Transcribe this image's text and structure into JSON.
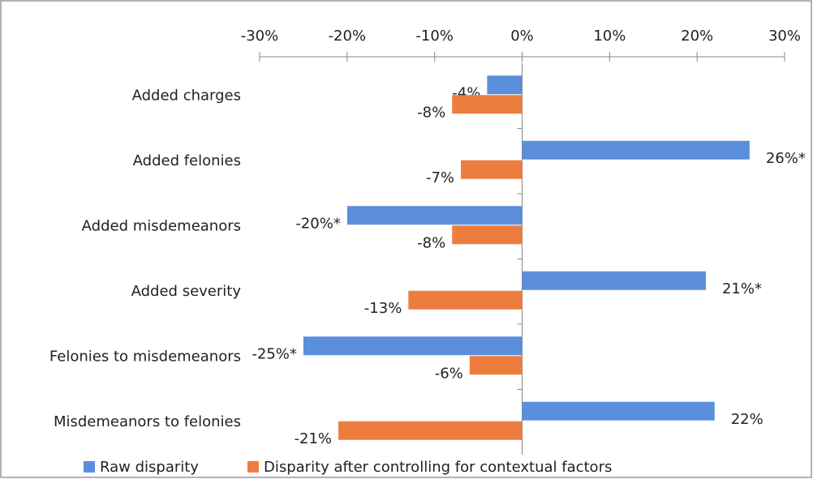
{
  "chart_data": {
    "type": "hbar",
    "categories": [
      "Added charges",
      "Added felonies",
      "Added misdemeanors",
      "Added severity",
      "Felonies to misdemeanors",
      "Misdemeanors to felonies"
    ],
    "series": [
      {
        "name": "Raw disparity",
        "color": "#5b8fdc",
        "values": [
          -4,
          26,
          -20,
          21,
          -25,
          22
        ],
        "value_labels": [
          "-4%",
          "26%*",
          "-20%*",
          "21%*",
          "-25%*",
          "22%"
        ]
      },
      {
        "name": "Disparity after controlling for contextual factors",
        "color": "#ed7d3f",
        "values": [
          -8,
          -7,
          -8,
          -13,
          -6,
          -21
        ],
        "value_labels": [
          "-8%",
          "-7%",
          "-8%",
          "-13%",
          "-6%",
          "-21%"
        ]
      }
    ],
    "xlim": [
      -30,
      30
    ],
    "xticks": [
      {
        "value": -30,
        "label": "-30%"
      },
      {
        "value": -20,
        "label": "-20%"
      },
      {
        "value": -10,
        "label": "-10%"
      },
      {
        "value": 0,
        "label": "0%"
      },
      {
        "value": 10,
        "label": "10%"
      },
      {
        "value": 20,
        "label": "20%"
      },
      {
        "value": 30,
        "label": "30%"
      }
    ],
    "legend": "bottom"
  }
}
